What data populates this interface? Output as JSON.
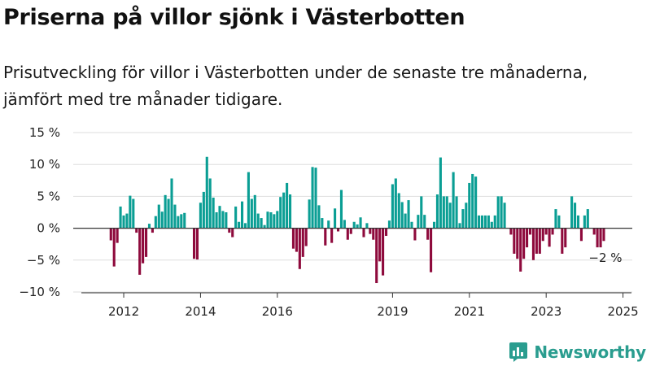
{
  "title": "Priserna på villor sjönk i Västerbotten",
  "subtitle": "Prisutveckling för villor i Västerbotten under de senaste tre månaderna, jämfört med tre månader tidigare.",
  "brand": "Newsworthy",
  "colors": {
    "positive": "#0a9e94",
    "negative": "#8e0a3c",
    "grid": "#dddddd",
    "text": "#222222",
    "brand": "#2a9d8f"
  },
  "chart_data": {
    "type": "bar",
    "x_unit": "month",
    "start": "2011-11",
    "end": "2025-03",
    "ylim": [
      -10,
      15
    ],
    "yticks": [
      15,
      10,
      5,
      0,
      -5,
      -10
    ],
    "ytick_labels": [
      "15 %",
      "10 %",
      "5 %",
      "0 %",
      "−5 %",
      "−10 %"
    ],
    "xticks": [
      "2012",
      "2014",
      "2016",
      "2019",
      "2021",
      "2023",
      "2025"
    ],
    "xtick_positions": [
      0.7,
      2.7,
      4.7,
      7.7,
      9.7,
      11.7,
      13.7
    ],
    "annotation": "−2 %",
    "grid": true,
    "legend": "none",
    "values": [
      0,
      0,
      0,
      0,
      -1.9,
      -6,
      -2.3,
      3.4,
      2,
      2.3,
      5.1,
      4.6,
      -0.7,
      -7.3,
      -5.5,
      -4.5,
      0.7,
      -0.7,
      1.9,
      3.7,
      2.6,
      5.2,
      4.6,
      7.8,
      3.7,
      1.9,
      2.2,
      2.4,
      0,
      0,
      -4.8,
      -4.9,
      4,
      5.7,
      11.2,
      7.8,
      4.8,
      2.5,
      3.5,
      2.7,
      2.5,
      -0.7,
      -1.4,
      3.4,
      1,
      4.2,
      0.8,
      8.8,
      4.6,
      5.2,
      2.3,
      1.6,
      0.5,
      2.6,
      2.5,
      2.2,
      2.7,
      4.9,
      5.6,
      7.1,
      5.3,
      -3.2,
      -3.7,
      -6.4,
      -4.5,
      -2.8,
      4.5,
      9.6,
      9.5,
      3.6,
      1.6,
      -2.7,
      1.2,
      -2.3,
      3.1,
      -0.5,
      6,
      1.3,
      -1.8,
      -0.9,
      1,
      0.6,
      1.7,
      -1.4,
      0.8,
      -0.9,
      -1.8,
      -8.6,
      -5.2,
      -7.4,
      -1.2,
      1.2,
      6.9,
      7.8,
      5.5,
      4.1,
      2.3,
      4.4,
      1,
      -1.9,
      2.1,
      5,
      2.1,
      -1.8,
      -6.9,
      1,
      5.3,
      11.1,
      5,
      5,
      4,
      8.8,
      5,
      0.8,
      3,
      4,
      7.1,
      8.5,
      8.1,
      2,
      2,
      2,
      2,
      1,
      2,
      5,
      5,
      4,
      0,
      -1,
      -4,
      -4.8,
      -6.8,
      -4.8,
      -3,
      -1,
      -5,
      -4,
      -4,
      -2,
      -1,
      -2.9,
      -1,
      3,
      2,
      -4,
      -3,
      0,
      5,
      4,
      2,
      -2,
      2,
      3,
      0,
      -1,
      -3,
      -3,
      -2
    ]
  }
}
